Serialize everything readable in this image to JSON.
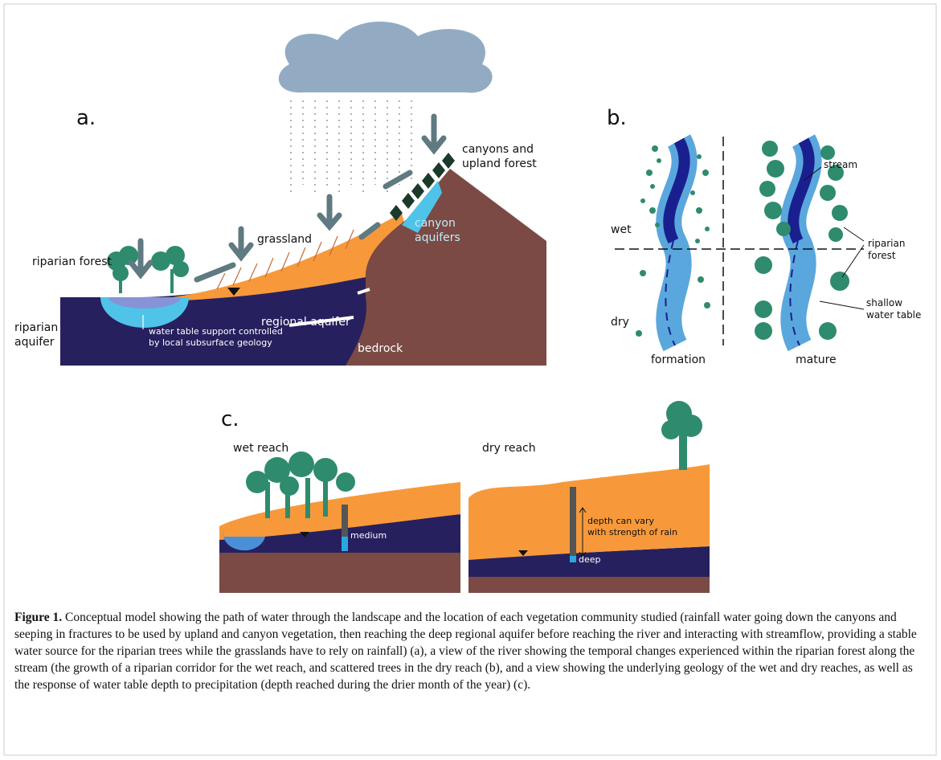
{
  "panel_a": {
    "label": "a.",
    "canyons_upland": [
      "canyons and",
      "upland forest"
    ],
    "grassland": "grassland",
    "canyon_aquifers": [
      "canyon",
      "aquifers"
    ],
    "riparian_forest": "riparian forest",
    "riparian_aquifer": [
      "riparian",
      "aquifer"
    ],
    "water_table_note": [
      "water table support controlled",
      "by local subsurface geology"
    ],
    "regional_aquifer": "regional aquifer",
    "bedrock": "bedrock"
  },
  "panel_b": {
    "label": "b.",
    "stream": "stream",
    "wet": "wet",
    "dry": "dry",
    "riparian_forest": [
      "riparian",
      "forest"
    ],
    "shallow_water_table": [
      "shallow",
      "water table"
    ],
    "formation": "formation",
    "mature": "mature"
  },
  "panel_c": {
    "label": "c.",
    "wet_reach": "wet reach",
    "dry_reach": "dry reach",
    "medium": "medium",
    "depth_note": [
      "depth can vary",
      "with strength of rain"
    ],
    "deep": "deep"
  },
  "caption": {
    "label": "Figure 1.",
    "text": "Conceptual model showing the path of water through the landscape and the location of each vegetation community studied (rainfall water going down the canyons and seeping in fractures to be used by upland and canyon vegetation, then reaching the deep regional aquifer before reaching the river and interacting with streamflow, providing a stable water source for the riparian trees while the grasslands have to rely on rainfall) (a), a view of the river showing the temporal changes experienced within the riparian forest along the stream (the growth of a riparian corridor for the wet reach, and scattered trees in the dry reach (b), and a view showing the underlying geology of the wet and dry reaches, as well as the response of water table depth to precipitation (depth reached during the drier month of the year) (c)."
  }
}
